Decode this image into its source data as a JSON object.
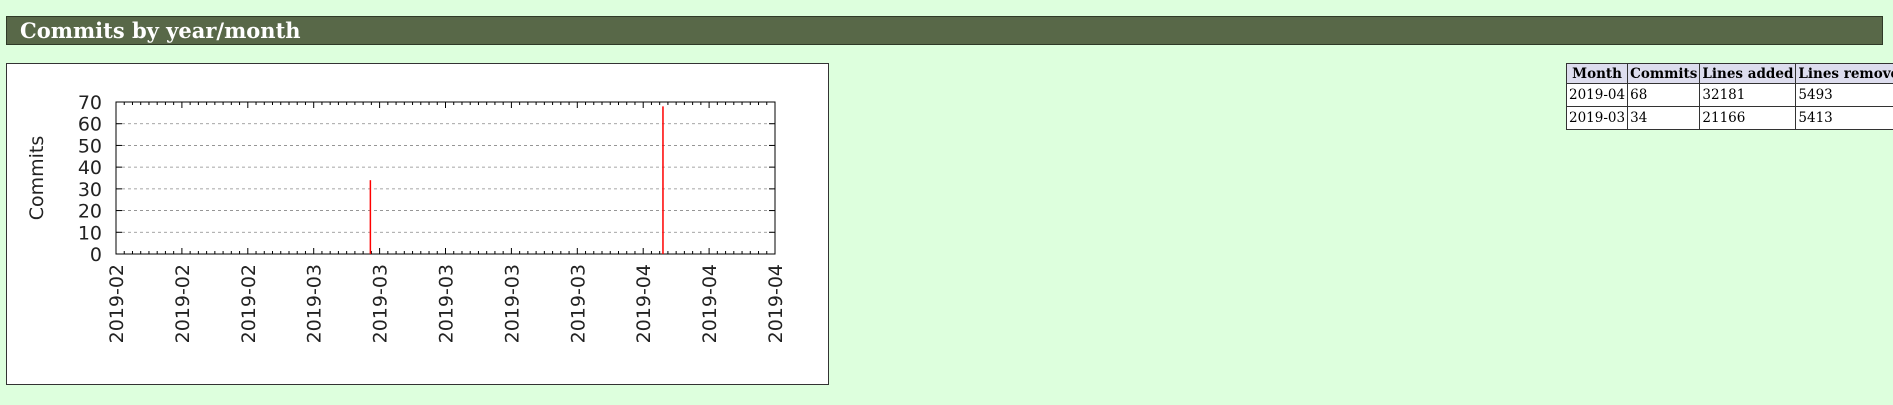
{
  "section": {
    "title": "Commits by year/month"
  },
  "chart_data": {
    "type": "bar",
    "title": "",
    "xlabel": "",
    "ylabel": "Commits",
    "ylim": [
      0,
      70
    ],
    "yticks": [
      0,
      10,
      20,
      30,
      40,
      50,
      60,
      70
    ],
    "x_tick_labels": [
      "2019-02",
      "2019-02",
      "2019-02",
      "2019-03",
      "2019-03",
      "2019-03",
      "2019-03",
      "2019-03",
      "2019-04",
      "2019-04",
      "2019-04"
    ],
    "grid": true,
    "legend": "none",
    "categories": [
      "2019-03",
      "2019-04"
    ],
    "values": [
      34,
      68
    ],
    "bar_color": "#ff0000",
    "bar_positions_in_tick_units": [
      3.86,
      8.3
    ]
  },
  "table": {
    "headers": [
      "Month",
      "Commits",
      "Lines added",
      "Lines removed"
    ],
    "rows": [
      [
        "2019-04",
        "68",
        "32181",
        "5493"
      ],
      [
        "2019-03",
        "34",
        "21166",
        "5413"
      ]
    ]
  }
}
